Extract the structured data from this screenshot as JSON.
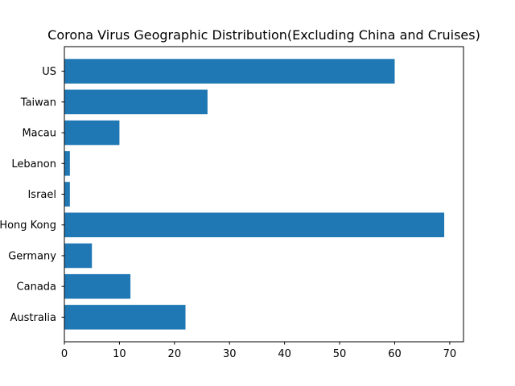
{
  "chart_data": {
    "type": "bar",
    "orientation": "horizontal",
    "title": "Corona Virus Geographic Distribution(Excluding China and Cruises)",
    "xlabel": "",
    "ylabel": "",
    "categories": [
      "Australia",
      "Canada",
      "Germany",
      "Hong Kong",
      "Israel",
      "Lebanon",
      "Macau",
      "Taiwan",
      "US"
    ],
    "values": [
      22,
      12,
      5,
      69,
      1,
      1,
      10,
      26,
      60
    ],
    "xlim": [
      0,
      72.5
    ],
    "xticks": [
      0,
      10,
      20,
      30,
      40,
      50,
      60,
      70
    ],
    "grid": false,
    "bar_color": "#1f77b4"
  }
}
